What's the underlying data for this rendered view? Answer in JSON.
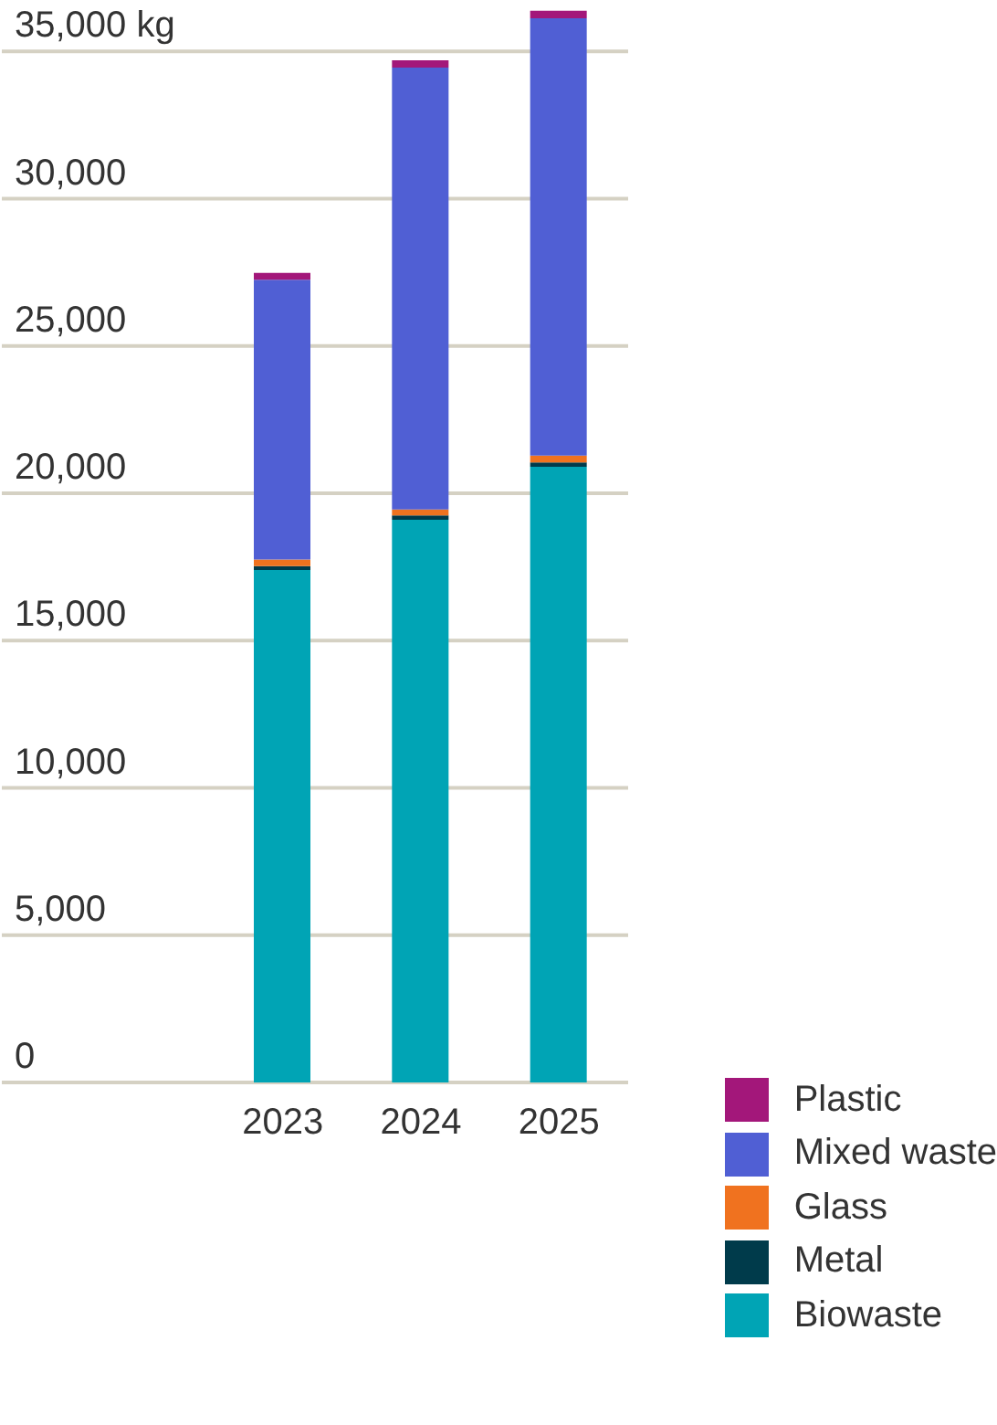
{
  "chart_data": {
    "type": "bar",
    "stacked": true,
    "categories": [
      "2023",
      "2024",
      "2025"
    ],
    "series": [
      {
        "name": "Biowaste",
        "color": "#00a4b5",
        "values": [
          17400,
          19100,
          20900
        ]
      },
      {
        "name": "Metal",
        "color": "#003b4b",
        "values": [
          130,
          150,
          150
        ]
      },
      {
        "name": "Glass",
        "color": "#f0721f",
        "values": [
          220,
          200,
          230
        ]
      },
      {
        "name": "Mixed waste",
        "color": "#505fd4",
        "values": [
          9500,
          15000,
          14850
        ]
      },
      {
        "name": "Plastic",
        "color": "#a3177a",
        "values": [
          230,
          250,
          250
        ]
      }
    ],
    "ylim": [
      0,
      36500
    ],
    "yticks": [
      0,
      {
        "value": 5000,
        "label": "5,000"
      },
      {
        "value": 10000,
        "label": "10,000"
      },
      {
        "value": 15000,
        "label": "15,000"
      },
      {
        "value": 20000,
        "label": "20,000"
      },
      {
        "value": 25000,
        "label": "25,000"
      },
      {
        "value": 30000,
        "label": "30,000"
      },
      {
        "value": 35000,
        "label": "35,000 kg"
      }
    ],
    "grid": "y",
    "legend": "bottom right"
  }
}
